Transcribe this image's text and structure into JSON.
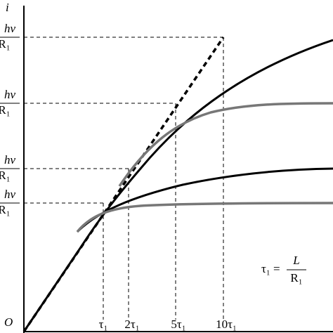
{
  "axis": {
    "y_label": "i",
    "origin": "O"
  },
  "y_labels": [
    {
      "numerator": "hv",
      "denominator": "R₁"
    },
    {
      "numerator": "hv",
      "denominator": "R₁"
    },
    {
      "numerator": "hv",
      "denominator": "R₁"
    },
    {
      "numerator": "hv",
      "denominator": "R₁"
    }
  ],
  "x_labels": [
    "τ₁",
    "2τ₁",
    "5τ₁",
    "10τ₁"
  ],
  "formula": {
    "lhs": "τ₁ =",
    "numerator": "L",
    "denominator": "R₁"
  }
}
